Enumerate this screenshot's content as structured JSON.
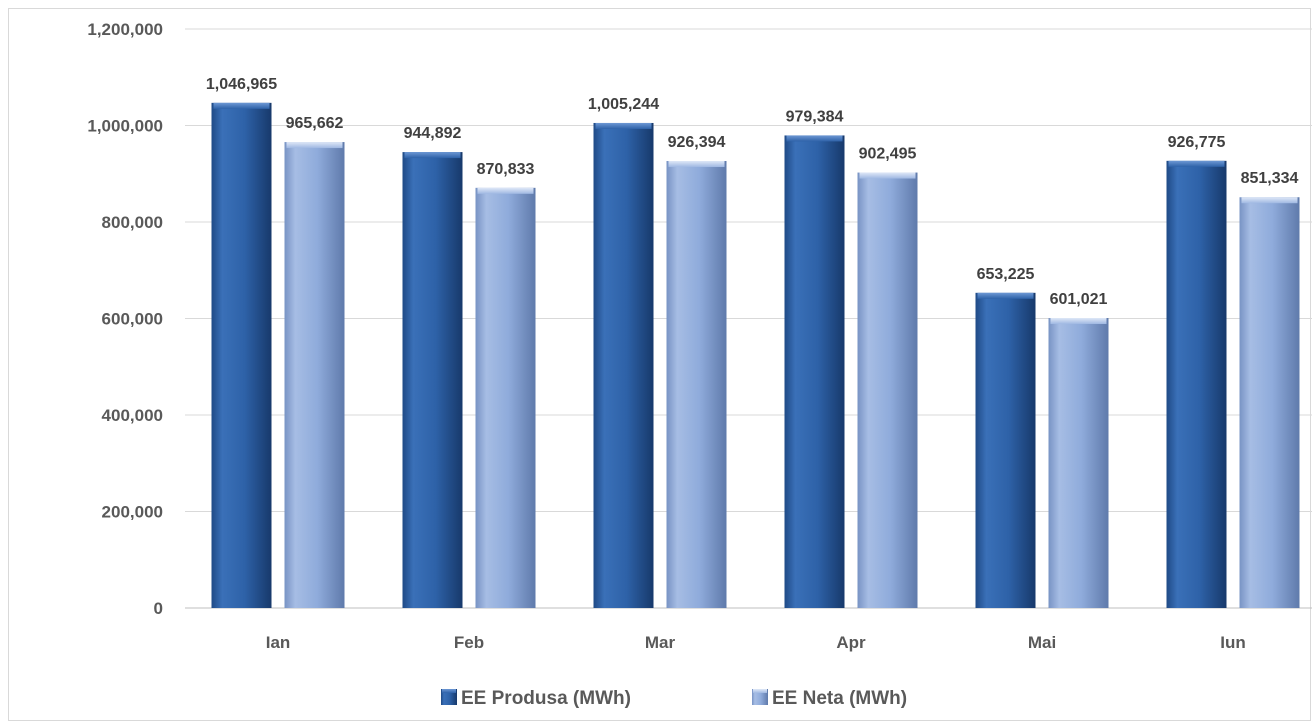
{
  "chart_data": {
    "type": "bar",
    "title": "",
    "xlabel": "",
    "ylabel": "",
    "categories": [
      "Ian",
      "Feb",
      "Mar",
      "Apr",
      "Mai",
      "Iun"
    ],
    "series": [
      {
        "name": "EE Produsa (MWh)",
        "values": [
          1046965,
          944892,
          1005244,
          979384,
          653225,
          926775
        ],
        "labels": [
          "1,046,965",
          "944,892",
          "1,005,244",
          "979,384",
          "653,225",
          "926,775"
        ],
        "color": "#2e62a8"
      },
      {
        "name": "EE Neta (MWh)",
        "values": [
          965662,
          870833,
          926394,
          902495,
          601021,
          851334
        ],
        "labels": [
          "965,662",
          "870,833",
          "926,394",
          "902,495",
          "601,021",
          "851,334"
        ],
        "color": "#8fabdb"
      }
    ],
    "ylim": [
      0,
      1200000
    ],
    "yticks": [
      0,
      200000,
      400000,
      600000,
      800000,
      1000000,
      1200000
    ],
    "ytick_labels": [
      "0",
      "200,000",
      "400,000",
      "600,000",
      "800,000",
      "1,000,000",
      "1,200,000"
    ],
    "grid": true,
    "legend_position": "bottom",
    "data_labels": true
  }
}
